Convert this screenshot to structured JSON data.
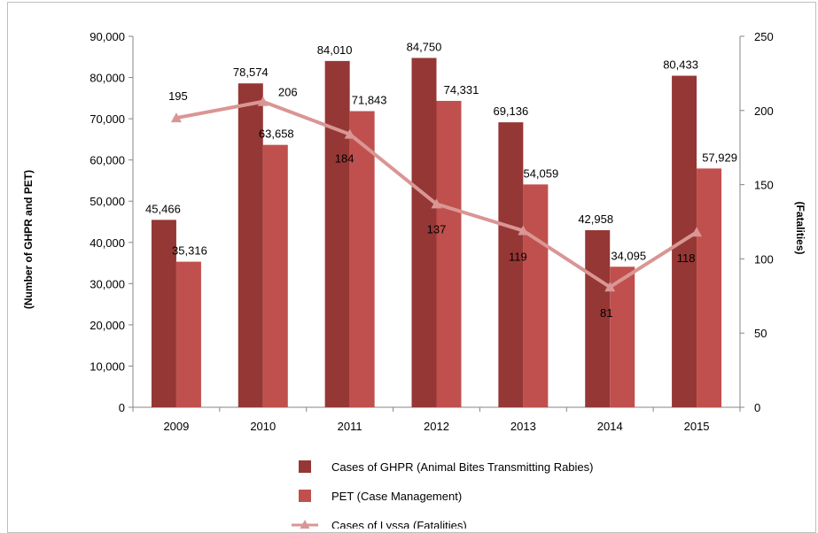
{
  "chart_data": {
    "type": "bar",
    "categories": [
      "2009",
      "2010",
      "2011",
      "2012",
      "2013",
      "2014",
      "2015"
    ],
    "series": [
      {
        "name": "Cases of GHPR (Animal Bites Transmitting  Rabies)",
        "kind": "bar",
        "axis": "left",
        "color": "#953735",
        "values": [
          45466,
          78574,
          84010,
          84750,
          69136,
          42958,
          80433
        ],
        "labels": [
          "45,466",
          "78,574",
          "84,010",
          "84,750",
          "69,136",
          "42,958",
          "80,433"
        ]
      },
      {
        "name": "PET (Case Management)",
        "kind": "bar",
        "axis": "left",
        "color": "#c0504d",
        "values": [
          35316,
          63658,
          71843,
          74331,
          54059,
          34095,
          57929
        ],
        "labels": [
          "35,316",
          "63,658",
          "71,843",
          "74,331",
          "54,059",
          "34,095",
          "57,929"
        ]
      },
      {
        "name": "Cases of Lyssa (Fatalities)",
        "kind": "line",
        "axis": "right",
        "color": "#d99694",
        "values": [
          195,
          206,
          184,
          137,
          119,
          81,
          118
        ],
        "labels": [
          "195",
          "206",
          "184",
          "137",
          "119",
          "81",
          "118"
        ]
      }
    ],
    "ylabel_left": "(Number of GHPR and PET)",
    "ylabel_right": "(Fatalities)",
    "ylim_left": [
      0,
      90000
    ],
    "ylim_right": [
      0,
      250
    ],
    "yticks_left": [
      "0",
      "10,000",
      "20,000",
      "30,000",
      "40,000",
      "50,000",
      "60,000",
      "70,000",
      "80,000",
      "90,000"
    ],
    "yticks_right": [
      "0",
      "50",
      "100",
      "150",
      "200",
      "250"
    ],
    "legend_position": "bottom",
    "grid": false
  }
}
